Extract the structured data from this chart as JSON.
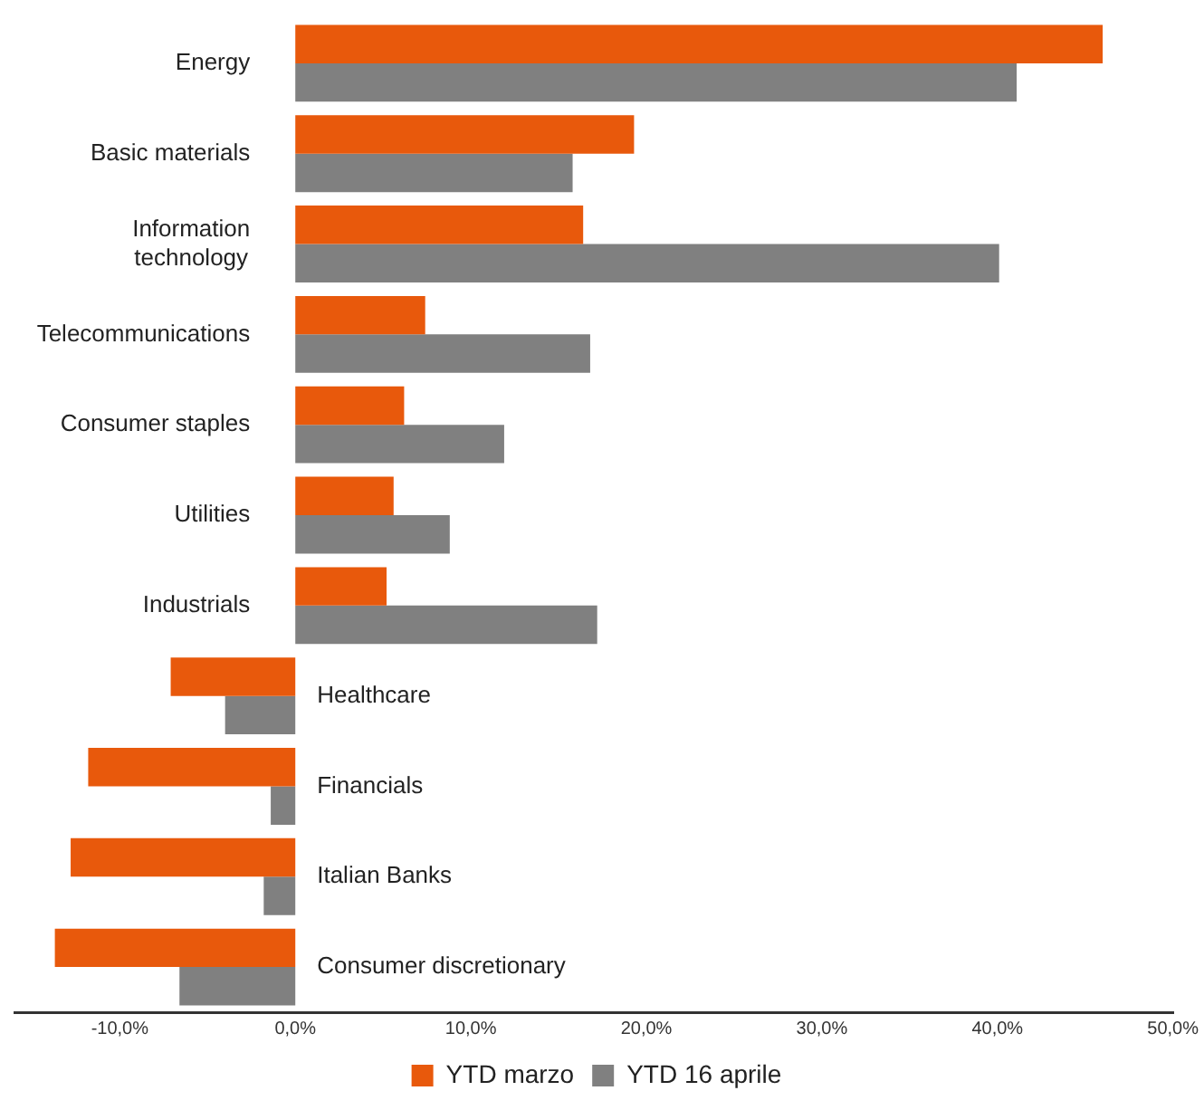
{
  "chart_data": {
    "type": "bar",
    "orientation": "horizontal",
    "categories": [
      "Energy",
      "Basic materials",
      "Information technology",
      "Telecommunications",
      "Consumer staples",
      "Utilities",
      "Industrials",
      "Healthcare",
      "Financials",
      "Italian Banks",
      "Consumer discretionary"
    ],
    "series": [
      {
        "name": "YTD marzo",
        "color": "#e8590c",
        "values": [
          46.0,
          19.3,
          16.4,
          7.4,
          6.2,
          5.6,
          5.2,
          -7.1,
          -11.8,
          -12.8,
          -13.7
        ]
      },
      {
        "name": "YTD 16 aprile",
        "color": "#808080",
        "values": [
          41.1,
          15.8,
          40.1,
          16.8,
          11.9,
          8.8,
          17.2,
          -4.0,
          -1.4,
          -1.8,
          -6.6
        ]
      }
    ],
    "xlim": [
      -16,
      50
    ],
    "xticks": [
      {
        "value": -10,
        "label": "-10,0%"
      },
      {
        "value": 0,
        "label": "0,0%"
      },
      {
        "value": 10,
        "label": "10,0%"
      },
      {
        "value": 20,
        "label": "20,0%"
      },
      {
        "value": 30,
        "label": "30,0%"
      },
      {
        "value": 40,
        "label": "40,0%"
      },
      {
        "value": 50,
        "label": "50,0%"
      }
    ],
    "grid": false,
    "legend": "bottom"
  }
}
